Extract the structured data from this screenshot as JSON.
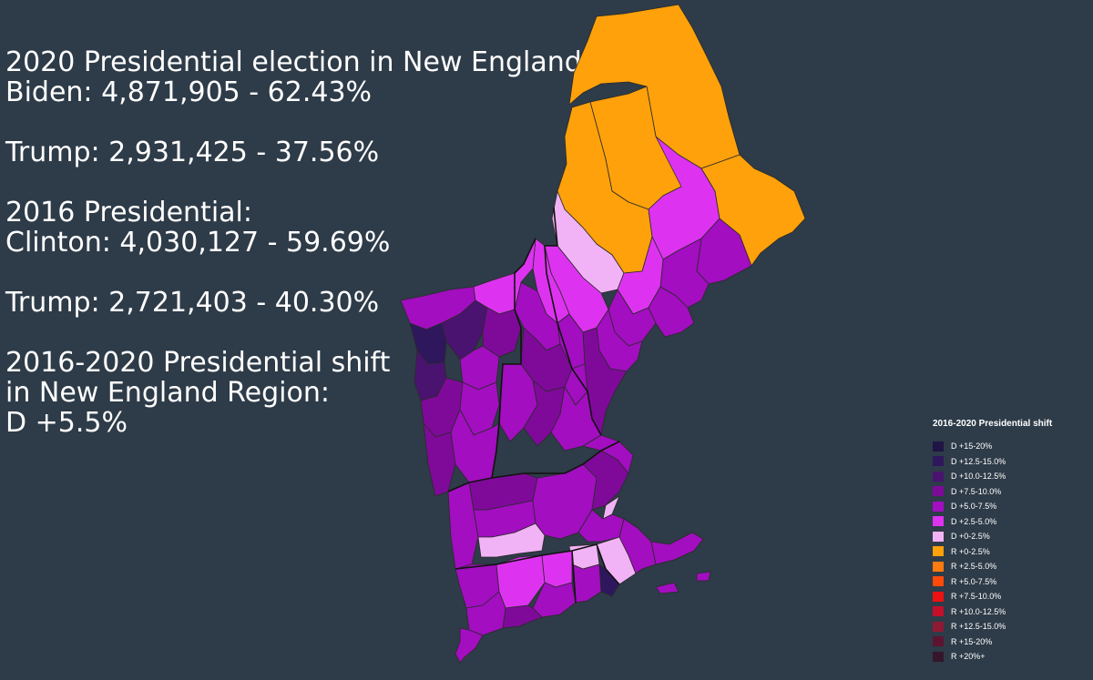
{
  "stats": {
    "line1": "2020 Presidential election in New England:",
    "line2": "Biden: 4,871,905 - 62.43%",
    "line3": "Trump: 2,931,425 - 37.56%",
    "line4": "2016 Presidential:",
    "line5": "Clinton: 4,030,127 - 59.69%",
    "line6": "Trump: 2,721,403 - 40.30%",
    "line7": "2016-2020 Presidential shift",
    "line8": "in New England Region:",
    "line9": "D +5.5%"
  },
  "colors": {
    "background": "#2e3b48",
    "county_border": "#2a2a2a",
    "state_border": "#111111"
  },
  "legend": {
    "title": "2016-2020 Presidential shift",
    "items": [
      {
        "label": "D +15-20%",
        "color": "#1f1444"
      },
      {
        "label": "D +12.5-15.0%",
        "color": "#2e175c"
      },
      {
        "label": "D +10.0-12.5%",
        "color": "#4a1370"
      },
      {
        "label": "D +7.5-10.0%",
        "color": "#7f0a9a"
      },
      {
        "label": "D +5.0-7.5%",
        "color": "#a20ec0"
      },
      {
        "label": "D +2.5-5.0%",
        "color": "#dd33f0"
      },
      {
        "label": "D +0-2.5%",
        "color": "#f2b3f6"
      },
      {
        "label": "R +0-2.5%",
        "color": "#ffa10a"
      },
      {
        "label": "R +2.5-5.0%",
        "color": "#ff7a10"
      },
      {
        "label": "R +5.0-7.5%",
        "color": "#ff4a0a"
      },
      {
        "label": "R +7.5-10.0%",
        "color": "#ee1111"
      },
      {
        "label": "R +10.0-12.5%",
        "color": "#c4102a"
      },
      {
        "label": "R +12.5-15.0%",
        "color": "#8e1a33"
      },
      {
        "label": "R +15-20%",
        "color": "#5c1530"
      },
      {
        "label": "R +20%+",
        "color": "#35162a"
      }
    ]
  }
}
